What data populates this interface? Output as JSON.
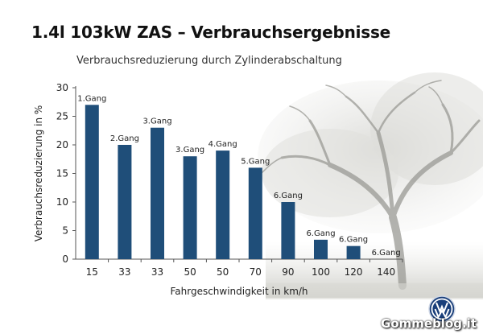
{
  "slide": {
    "title": "1.4l 103kW ZAS – Verbrauchsergebnisse",
    "subtitle": "Verbrauchsreduzierung durch Zylinderabschaltung",
    "watermark": "Gommeblog.it",
    "logo_text": "VW"
  },
  "colors": {
    "bar": "#1f4e79",
    "axis": "#555555",
    "text": "#222222"
  },
  "chart_data": {
    "type": "bar",
    "categories": [
      "15",
      "33",
      "33",
      "50",
      "50",
      "70",
      "90",
      "100",
      "120",
      "140"
    ],
    "values": [
      27,
      20,
      23,
      18,
      19,
      16,
      10,
      3.4,
      2.3,
      0
    ],
    "bar_labels": [
      "1.Gang",
      "2.Gang",
      "3.Gang",
      "3.Gang",
      "4.Gang",
      "5.Gang",
      "6.Gang",
      "6.Gang",
      "6.Gang",
      "6.Gang"
    ],
    "xlabel": "Fahrgeschwindigkeit in km/h",
    "ylabel": "Verbrauchsreduzierung in %",
    "ylim": [
      0,
      30
    ],
    "yticks": [
      "0",
      "5",
      "10",
      "15",
      "20",
      "25",
      "30"
    ],
    "grid": false,
    "legend": "none"
  }
}
